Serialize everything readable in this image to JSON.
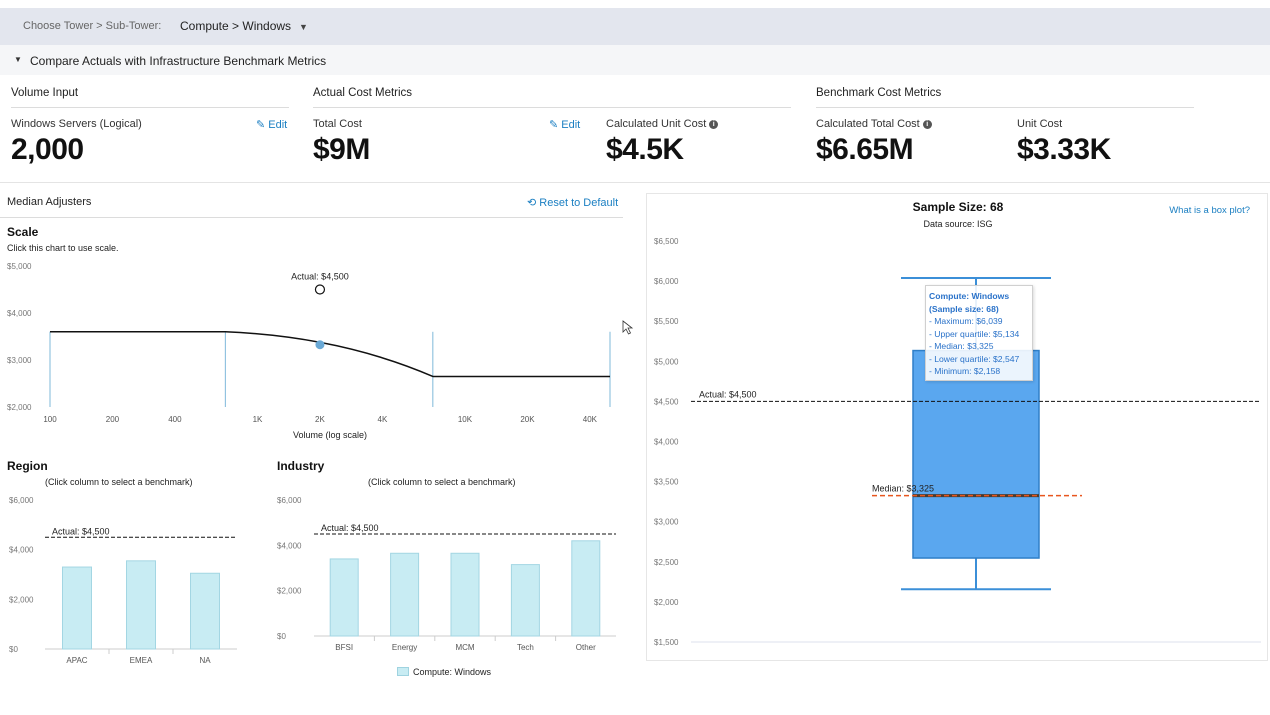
{
  "topbar": {
    "label": "Choose Tower > Sub-Tower:",
    "selection": "Compute > Windows",
    "caret": "▼"
  },
  "section": {
    "toggle": "▼",
    "title": "Compare Actuals with Infrastructure Benchmark Metrics"
  },
  "volume_input": {
    "heading": "Volume Input",
    "label": "Windows Servers (Logical)",
    "edit": "Edit",
    "value": "2,000"
  },
  "actual_cost": {
    "heading": "Actual Cost Metrics",
    "total_label": "Total Cost",
    "edit": "Edit",
    "total_value": "$9M",
    "unit_label": "Calculated Unit Cost",
    "unit_value": "$4.5K"
  },
  "benchmark_cost": {
    "heading": "Benchmark Cost Metrics",
    "total_label": "Calculated Total Cost",
    "total_value": "$6.65M",
    "unit_label": "Unit Cost",
    "unit_value": "$3.33K"
  },
  "median_adjusters": {
    "title": "Median Adjusters",
    "reset": "Reset to Default"
  },
  "colors": {
    "accent": "#1b7fc2",
    "bar_fill": "#c8ecf3",
    "box_fill": "#5aa7ef",
    "median_line": "#e8561f"
  },
  "chart_data": [
    {
      "type": "line",
      "title": "Scale",
      "subtitle": "Click this chart to use scale.",
      "xlabel": "Volume (log scale)",
      "x_ticks": [
        "100",
        "200",
        "400",
        "1K",
        "2K",
        "4K",
        "10K",
        "20K",
        "40K"
      ],
      "y_ticks": [
        "$5,000",
        "$4,000",
        "$3,000",
        "$2,000"
      ],
      "ylim": [
        2000,
        5000
      ],
      "annotation": "Actual: $4,500",
      "series": [
        {
          "name": "Benchmark curve",
          "x": [
            100,
            700,
            2000,
            7000,
            50000
          ],
          "y": [
            3600,
            3600,
            3300,
            2650,
            2650
          ]
        }
      ],
      "selected_point": {
        "x": 2000,
        "y": 3325
      },
      "actual_point": {
        "x": 2000,
        "y": 4500
      }
    },
    {
      "type": "bar",
      "title": "Region",
      "subtitle": "(Click column to select a benchmark)",
      "categories": [
        "APAC",
        "EMEA",
        "NA"
      ],
      "values": [
        3300,
        3550,
        3050
      ],
      "y_ticks": [
        "$6,000",
        "$4,000",
        "$2,000",
        "$0"
      ],
      "ylim": [
        0,
        6000
      ],
      "reference_line": {
        "label": "Actual: $4,500",
        "value": 4500
      }
    },
    {
      "type": "bar",
      "title": "Industry",
      "subtitle": "(Click column to select a benchmark)",
      "categories": [
        "BFSI",
        "Energy",
        "MCM",
        "Tech",
        "Other"
      ],
      "values": [
        3400,
        3650,
        3650,
        3150,
        4200
      ],
      "y_ticks": [
        "$6,000",
        "$4,000",
        "$2,000",
        "$0"
      ],
      "ylim": [
        0,
        6000
      ],
      "reference_line": {
        "label": "Actual: $4,500",
        "value": 4500
      },
      "legend": "Compute: Windows"
    },
    {
      "type": "box",
      "title": "Sample Size: 68",
      "subtitle": "Data source: ISG",
      "help_link": "What is a box plot?",
      "y_ticks": [
        "$6,500",
        "$6,000",
        "$5,500",
        "$5,000",
        "$4,500",
        "$4,000",
        "$3,500",
        "$3,000",
        "$2,500",
        "$2,000",
        "$1,500"
      ],
      "ylim": [
        1500,
        6500
      ],
      "maximum": 6039,
      "upper_quartile": 5134,
      "median": 3325,
      "lower_quartile": 2547,
      "minimum": 2158,
      "actual_line": {
        "label": "Actual: $4,500",
        "value": 4500
      },
      "median_line": {
        "label": "Median: $3,325",
        "value": 3325
      },
      "tooltip": {
        "title": "Compute: Windows",
        "subtitle": "(Sample size: 68)",
        "lines": [
          "- Maximum: $6,039",
          "- Upper quartile: $5,134",
          "- Median: $3,325",
          "- Lower quartile: $2,547",
          "- Minimum: $2,158"
        ]
      }
    }
  ]
}
